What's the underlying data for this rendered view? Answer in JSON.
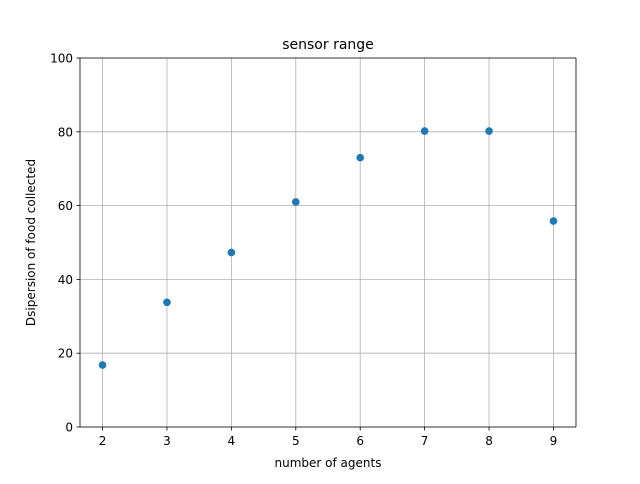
{
  "chart_data": {
    "type": "scatter",
    "title": "sensor range",
    "xlabel": "number of agents",
    "ylabel": "Dsipersion of food collected",
    "x": [
      2,
      3,
      4,
      5,
      6,
      7,
      8,
      9
    ],
    "y": [
      16.8,
      33.8,
      47.3,
      61.0,
      73.0,
      80.2,
      80.2,
      55.8
    ],
    "xlim": [
      1.65,
      9.35
    ],
    "ylim": [
      0,
      100
    ],
    "xticks": [
      2,
      3,
      4,
      5,
      6,
      7,
      8,
      9
    ],
    "yticks": [
      0,
      20,
      40,
      60,
      80,
      100
    ],
    "grid": true,
    "marker_color": "#1f77b4"
  }
}
